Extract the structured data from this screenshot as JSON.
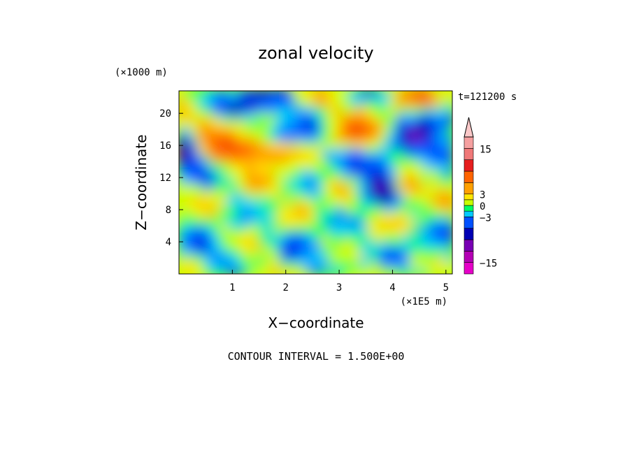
{
  "chart_data": {
    "type": "heatmap",
    "title": "zonal velocity",
    "xlabel": "X−coordinate",
    "ylabel": "Z−coordinate",
    "x_units": "(×1E5 m)",
    "y_units": "(×1000 m)",
    "time_label": "t=121200 s",
    "footer": "CONTOUR INTERVAL = 1.500E+00",
    "xlim": [
      0,
      5.12
    ],
    "ylim": [
      0,
      22.8
    ],
    "x_ticks": [
      "1",
      "2",
      "3",
      "4",
      "5"
    ],
    "x_tick_values": [
      1,
      2,
      3,
      4,
      5
    ],
    "y_ticks": [
      "4",
      "8",
      "12",
      "16",
      "20"
    ],
    "y_tick_values": [
      4,
      8,
      12,
      16,
      20
    ],
    "contour_interval": 1.5,
    "colorbar": {
      "tick_labels": [
        "15",
        "3",
        "0",
        "−3",
        "−15"
      ],
      "tick_values": [
        15,
        3,
        0,
        -3,
        -15
      ],
      "levels": [
        -18,
        -15,
        -12,
        -9,
        -6,
        -3,
        -1.5,
        0,
        1.5,
        3,
        6,
        9,
        12,
        15,
        18
      ],
      "colors": [
        "#e600c8",
        "#b400b4",
        "#7800b4",
        "#0000b4",
        "#0050ff",
        "#00c8ff",
        "#00ff64",
        "#c8ff00",
        "#ffe600",
        "#ffa000",
        "#ff6400",
        "#e61e1e",
        "#f07878",
        "#f5a0a0",
        "#fac8c8"
      ],
      "extend": "max"
    }
  }
}
